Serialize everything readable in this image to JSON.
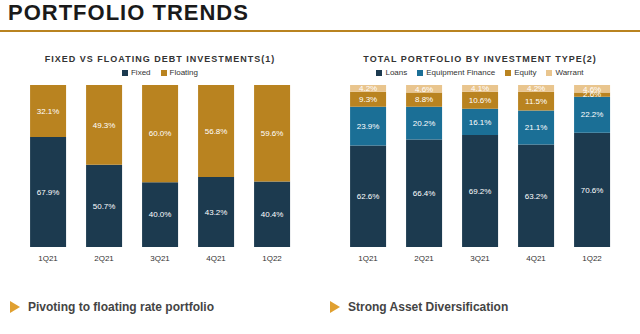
{
  "title": "PORTFOLIO TRENDS",
  "chart_data": [
    {
      "type": "bar",
      "title": "FIXED VS FLOATING DEBT INVESTMENTS(1)",
      "categories": [
        "1Q21",
        "2Q21",
        "3Q21",
        "4Q21",
        "1Q22"
      ],
      "stacked": true,
      "data_labels": true,
      "tick_labels": "x",
      "legend": "top",
      "ylim": [
        0,
        100
      ],
      "series": [
        {
          "name": "Fixed",
          "color": "#1c3a4f",
          "values": [
            67.9,
            50.7,
            40.0,
            43.2,
            40.4
          ],
          "value_labels": [
            "67.9%",
            "50.7%",
            "40.0%",
            "43.2%",
            "40.4%"
          ]
        },
        {
          "name": "Floating",
          "color": "#b98320",
          "values": [
            32.1,
            49.3,
            60.0,
            56.8,
            59.6
          ],
          "value_labels": [
            "32.1%",
            "49.3%",
            "60.0%",
            "56.8%",
            "59.6%"
          ]
        }
      ],
      "annotations": [
        "Pivoting to floating rate portfolio"
      ]
    },
    {
      "type": "bar",
      "title": "TOTAL PORTFOLIO BY INVESTMENT TYPE(2)",
      "categories": [
        "1Q21",
        "2Q21",
        "3Q21",
        "4Q21",
        "1Q22"
      ],
      "stacked": true,
      "data_labels": true,
      "tick_labels": "x",
      "legend": "top",
      "ylim": [
        0,
        100
      ],
      "series": [
        {
          "name": "Loans",
          "color": "#1c3a4f",
          "values": [
            62.6,
            66.4,
            69.2,
            63.2,
            70.6
          ],
          "value_labels": [
            "62.6%",
            "66.4%",
            "69.2%",
            "63.2%",
            "70.6%"
          ]
        },
        {
          "name": "Equipment Finance",
          "color": "#1b6f96",
          "values": [
            23.9,
            20.2,
            16.1,
            21.1,
            22.2
          ],
          "value_labels": [
            "23.9%",
            "20.2%",
            "16.1%",
            "21.1%",
            "22.2%"
          ]
        },
        {
          "name": "Equity",
          "color": "#b98320",
          "values": [
            9.3,
            8.8,
            10.6,
            11.5,
            2.6
          ],
          "value_labels": [
            "9.3%",
            "8.8%",
            "10.6%",
            "11.5%",
            "2.6%"
          ]
        },
        {
          "name": "Warrant",
          "color": "#e9c58e",
          "values": [
            4.2,
            4.6,
            4.1,
            4.2,
            4.6
          ],
          "value_labels": [
            "4.2%",
            "4.6%",
            "4.1%",
            "4.2%",
            "4.6%"
          ]
        }
      ],
      "annotations": [
        "Strong Asset Diversification"
      ]
    }
  ]
}
